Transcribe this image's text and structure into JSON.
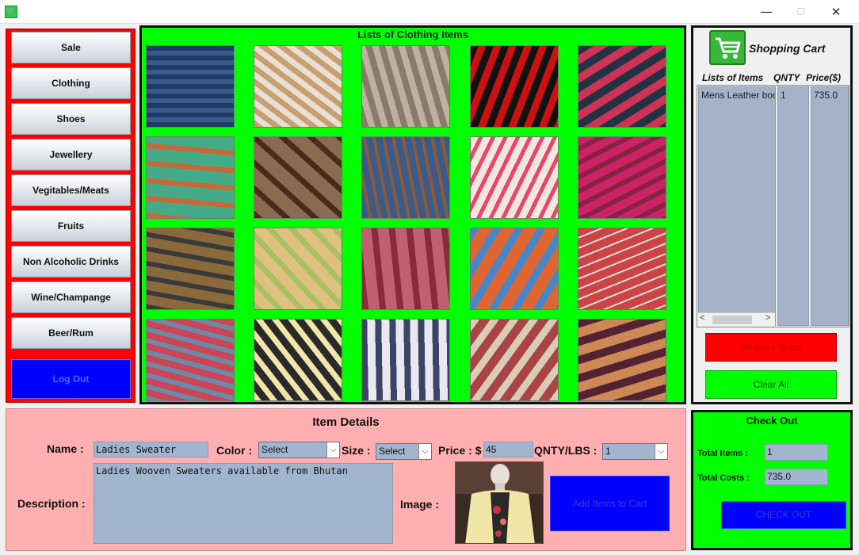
{
  "window": {
    "app_icon": "cart-app-icon",
    "minimize": "—",
    "maximize": "☐",
    "close": "✕"
  },
  "nav": {
    "items": [
      "Sale",
      "Clothing",
      "Shoes",
      "Jewellery",
      "Vegitables/Meats",
      "Fruits",
      "Non Alcoholic Drinks",
      "Wine/Champange",
      "Beer/Rum"
    ],
    "logout": "Log Out"
  },
  "grid": {
    "title": "Lists of Clothing Items",
    "tiles": [
      {
        "name": "denim-jacket",
        "colors": [
          "#1e3a66",
          "#3a5a8a"
        ]
      },
      {
        "name": "cowboy-hat",
        "colors": [
          "#c8a070",
          "#e8e0d8"
        ]
      },
      {
        "name": "scarves",
        "colors": [
          "#8a7a6a",
          "#c0b0a0"
        ]
      },
      {
        "name": "striped-fedora",
        "colors": [
          "#111111",
          "#cc1111"
        ]
      },
      {
        "name": "colorful-ties",
        "colors": [
          "#223344",
          "#cc3355"
        ]
      },
      {
        "name": "colorful-dresses",
        "colors": [
          "#cc6633",
          "#44aa88"
        ]
      },
      {
        "name": "leather-belt",
        "colors": [
          "#4a2a18",
          "#8a6a50"
        ]
      },
      {
        "name": "jeans",
        "colors": [
          "#3a5a8a",
          "#8a5a3a"
        ]
      },
      {
        "name": "sunglasses",
        "colors": [
          "#f0e8e0",
          "#ee4466"
        ]
      },
      {
        "name": "pink-gowns",
        "colors": [
          "#cc2266",
          "#882244"
        ]
      },
      {
        "name": "mens-suit",
        "colors": [
          "#3a3a3a",
          "#8a6a3a"
        ]
      },
      {
        "name": "pastel-ties",
        "colors": [
          "#a8c060",
          "#e0c080"
        ]
      },
      {
        "name": "silk-scarves",
        "colors": [
          "#8a2a3a",
          "#c06070"
        ]
      },
      {
        "name": "folded-ties",
        "colors": [
          "#4488cc",
          "#dd6633"
        ]
      },
      {
        "name": "sweater-shelves",
        "colors": [
          "#cc4444",
          "#dddddd"
        ]
      },
      {
        "name": "tie-rack",
        "colors": [
          "#6a8aa8",
          "#cc4455"
        ]
      },
      {
        "name": "ladies-cardigan",
        "colors": [
          "#f0e6a8",
          "#2a2a2a"
        ]
      },
      {
        "name": "striped-sweater",
        "colors": [
          "#3a4466",
          "#e8e8f0"
        ]
      },
      {
        "name": "sun-hats",
        "colors": [
          "#d8ccb8",
          "#aa4444"
        ]
      },
      {
        "name": "clothes-rack",
        "colors": [
          "#552233",
          "#cc8855"
        ]
      }
    ]
  },
  "cart": {
    "title": "Shopping Cart",
    "headers": {
      "items": "Lists of Items",
      "qnty": "QNTY",
      "price": "Price($)"
    },
    "rows": [
      {
        "item": "Mens Leather boots",
        "qnty": "1",
        "price": "735.0"
      }
    ],
    "scroll_left": "<",
    "scroll_right": ">",
    "remove": "Remove Items",
    "clear": "Clear All"
  },
  "details": {
    "title": "Item Details",
    "name_label": "Name :",
    "name_value": "Ladies Sweater",
    "color_label": "Color :",
    "color_value": "Select",
    "size_label": "Size :",
    "size_value": "Select",
    "price_label": "Price : $",
    "price_value": "45",
    "qnty_label": "QNTY/LBS :",
    "qnty_value": "1",
    "desc_label": "Description :",
    "desc_value": "Ladies Wooven Sweaters available from Bhutan",
    "image_label": "Image :",
    "add_button": "Add Items to Cart"
  },
  "checkout": {
    "title": "Check Out",
    "total_items_label": "Total Items :",
    "total_items_value": "1",
    "total_costs_label": "Total Costs :",
    "total_costs_value": "735.0",
    "button": "CHECK OUT"
  }
}
